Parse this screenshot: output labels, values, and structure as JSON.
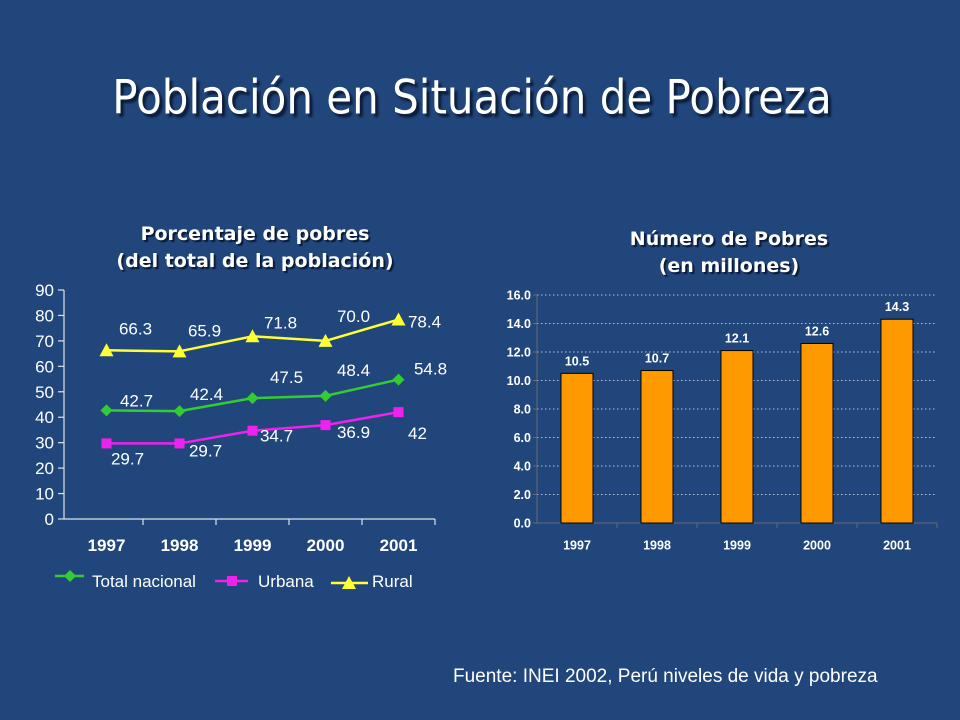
{
  "slide": {
    "title": "Población en Situación de Pobreza",
    "source": "Fuente: INEI 2002, Perú niveles de vida y pobreza"
  },
  "chart_data": [
    {
      "type": "line",
      "title": "Porcentaje de pobres",
      "subtitle": "(del total de la población)",
      "categories": [
        "1997",
        "1998",
        "1999",
        "2000",
        "2001"
      ],
      "ylim": [
        0,
        90
      ],
      "ytick_labels": [
        "0",
        "10",
        "20",
        "30",
        "40",
        "50",
        "60",
        "70",
        "80",
        "90"
      ],
      "grid": false,
      "legend": "bottom",
      "series": [
        {
          "name": "Total nacional",
          "values": [
            42.7,
            42.4,
            47.5,
            48.4,
            54.8
          ],
          "labels": [
            "42.7",
            "42.4",
            "47.5",
            "48.4",
            "54.8"
          ],
          "color": "#33cc33",
          "marker": "diamond"
        },
        {
          "name": "Urbana",
          "values": [
            29.7,
            29.7,
            34.7,
            36.9,
            42
          ],
          "labels": [
            "29.7",
            "29.7",
            "34.7",
            "36.9",
            "42"
          ],
          "color": "#ee22ee",
          "marker": "square"
        },
        {
          "name": "Rural",
          "values": [
            66.3,
            65.9,
            71.8,
            70.0,
            78.4
          ],
          "labels": [
            "66.3",
            "65.9",
            "71.8",
            "70.0",
            "78.4"
          ],
          "color": "#ffff33",
          "marker": "triangle"
        }
      ]
    },
    {
      "type": "bar",
      "title": "Número de Pobres",
      "subtitle": "(en millones)",
      "categories": [
        "1997",
        "1998",
        "1999",
        "2000",
        "2001"
      ],
      "values": [
        10.5,
        10.7,
        12.1,
        12.6,
        14.3
      ],
      "labels": [
        "10.5",
        "10.7",
        "12.1",
        "12.6",
        "14.3"
      ],
      "ylim": [
        0,
        16
      ],
      "ytick_labels": [
        "0.0",
        "2.0",
        "4.0",
        "6.0",
        "8.0",
        "10.0",
        "12.0",
        "14.0",
        "16.0"
      ],
      "grid": true,
      "legend": "none",
      "bar_color": "#ff9900"
    }
  ]
}
